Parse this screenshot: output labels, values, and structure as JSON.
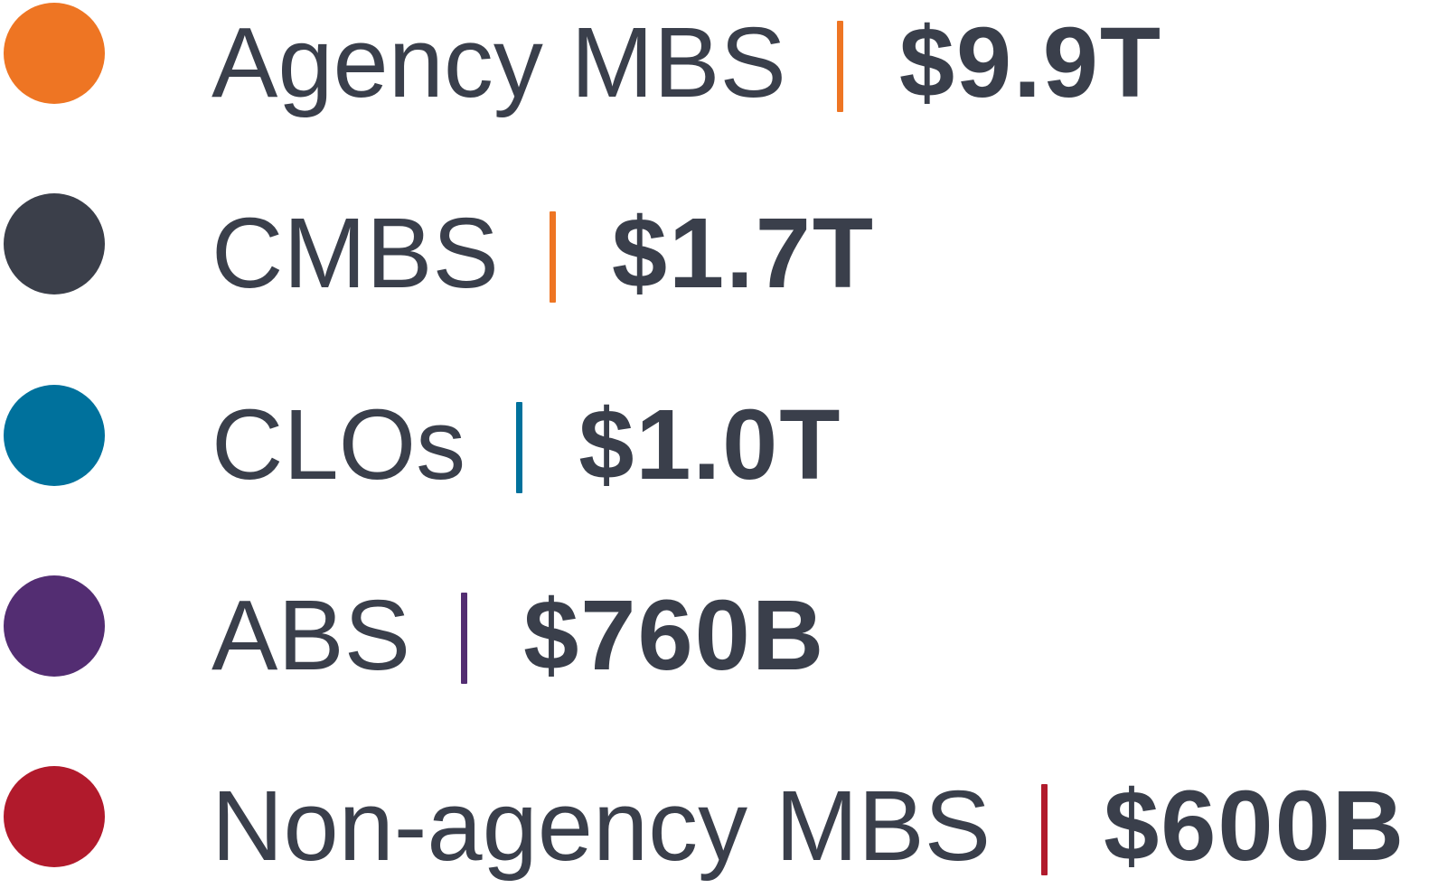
{
  "text_color": "#3A3F4B",
  "background_color": "#FFFFFF",
  "legend": {
    "items": [
      {
        "label": "Agency MBS",
        "value": "$9.9T",
        "bullet_color": "#EE7523",
        "divider_color": "#EE7523"
      },
      {
        "label": "CMBS",
        "value": "$1.7T",
        "bullet_color": "#3B3F4A",
        "divider_color": "#EE7523"
      },
      {
        "label": "CLOs",
        "value": "$1.0T",
        "bullet_color": "#00719C",
        "divider_color": "#00719C"
      },
      {
        "label": "ABS",
        "value": "$760B",
        "bullet_color": "#532D72",
        "divider_color": "#532D72"
      },
      {
        "label": "Non-agency MBS",
        "value": "$600B",
        "bullet_color": "#B11A2C",
        "divider_color": "#B11A2C"
      }
    ]
  },
  "chart_data": {
    "type": "table",
    "title": "",
    "categories": [
      "Agency MBS",
      "CMBS",
      "CLOs",
      "ABS",
      "Non-agency MBS"
    ],
    "values": [
      9900,
      1700,
      1000,
      760,
      600
    ],
    "value_unit": "USD billions",
    "value_labels": [
      "$9.9T",
      "$1.7T",
      "$1.0T",
      "$760B",
      "$600B"
    ],
    "colors": [
      "#EE7523",
      "#3B3F4A",
      "#00719C",
      "#532D72",
      "#B11A2C"
    ],
    "legend_position": "standalone-legend",
    "grid": false
  }
}
